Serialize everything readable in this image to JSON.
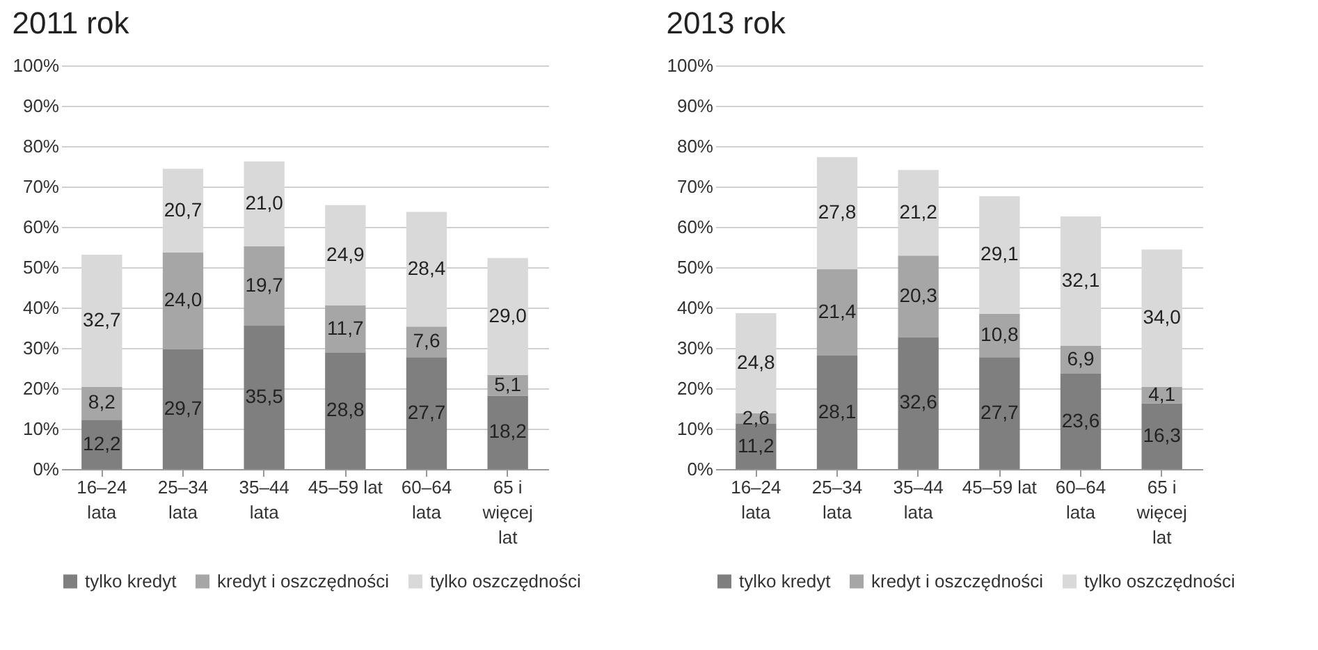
{
  "chart_data": [
    {
      "type": "bar",
      "title": "2011 rok",
      "stacked": true,
      "categories": [
        "16–24 lata",
        "25–34 lata",
        "35–44 lata",
        "45–59 lat",
        "60–64 lata",
        "65 i więcej lat"
      ],
      "ylim": [
        0,
        100
      ],
      "yticks": [
        {
          "value": 0,
          "label": "0%"
        },
        {
          "value": 10,
          "label": "10%"
        },
        {
          "value": 20,
          "label": "20%"
        },
        {
          "value": 30,
          "label": "30%"
        },
        {
          "value": 40,
          "label": "40%"
        },
        {
          "value": 50,
          "label": "50%"
        },
        {
          "value": 60,
          "label": "60%"
        },
        {
          "value": 70,
          "label": "70%"
        },
        {
          "value": 80,
          "label": "80%"
        },
        {
          "value": 90,
          "label": "90%"
        },
        {
          "value": 100,
          "label": "100%"
        }
      ],
      "grid": "y",
      "legend": "bottom",
      "series": [
        {
          "name": "tylko kredyt",
          "color": "#7f7f7f",
          "values": [
            12.2,
            29.7,
            35.5,
            28.8,
            27.7,
            18.2
          ],
          "value_labels": [
            "12,2",
            "29,7",
            "35,5",
            "28,8",
            "27,7",
            "18,2"
          ]
        },
        {
          "name": "kredyt i oszczędności",
          "color": "#a6a6a6",
          "values": [
            8.2,
            24.0,
            19.7,
            11.7,
            7.6,
            5.1
          ],
          "value_labels": [
            "8,2",
            "24,0",
            "19,7",
            "11,7",
            "7,6",
            "5,1"
          ]
        },
        {
          "name": "tylko oszczędności",
          "color": "#d9d9d9",
          "values": [
            32.7,
            20.7,
            21.0,
            24.9,
            28.4,
            29.0
          ],
          "value_labels": [
            "32,7",
            "20,7",
            "21,0",
            "24,9",
            "28,4",
            "29,0"
          ]
        }
      ]
    },
    {
      "type": "bar",
      "title": "2013 rok",
      "stacked": true,
      "categories": [
        "16–24 lata",
        "25–34 lata",
        "35–44 lata",
        "45–59 lat",
        "60–64 lata",
        "65 i więcej lat"
      ],
      "ylim": [
        0,
        100
      ],
      "yticks": [
        {
          "value": 0,
          "label": "0%"
        },
        {
          "value": 10,
          "label": "10%"
        },
        {
          "value": 20,
          "label": "20%"
        },
        {
          "value": 30,
          "label": "30%"
        },
        {
          "value": 40,
          "label": "40%"
        },
        {
          "value": 50,
          "label": "50%"
        },
        {
          "value": 60,
          "label": "60%"
        },
        {
          "value": 70,
          "label": "70%"
        },
        {
          "value": 80,
          "label": "80%"
        },
        {
          "value": 90,
          "label": "90%"
        },
        {
          "value": 100,
          "label": "100%"
        }
      ],
      "grid": "y",
      "legend": "bottom",
      "series": [
        {
          "name": "tylko kredyt",
          "color": "#7f7f7f",
          "values": [
            11.2,
            28.1,
            32.6,
            27.7,
            23.6,
            16.3
          ],
          "value_labels": [
            "11,2",
            "28,1",
            "32,6",
            "27,7",
            "23,6",
            "16,3"
          ]
        },
        {
          "name": "kredyt i oszczędności",
          "color": "#a6a6a6",
          "values": [
            2.6,
            21.4,
            20.3,
            10.8,
            6.9,
            4.1
          ],
          "value_labels": [
            "2,6",
            "21,4",
            "20,3",
            "10,8",
            "6,9",
            "4,1"
          ]
        },
        {
          "name": "tylko oszczędności",
          "color": "#d9d9d9",
          "values": [
            24.8,
            27.8,
            21.2,
            29.1,
            32.1,
            34.0
          ],
          "value_labels": [
            "24,8",
            "27,8",
            "21,2",
            "29,1",
            "32,1",
            "34,0"
          ]
        }
      ]
    }
  ]
}
